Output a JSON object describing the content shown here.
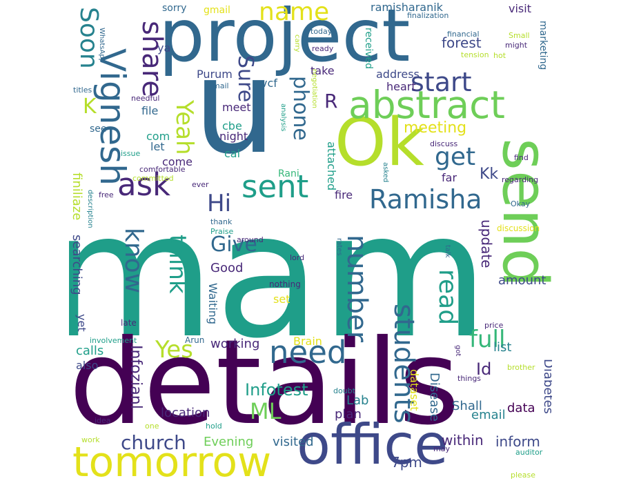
{
  "palette": {
    "dp": "#440154",
    "pu": "#482878",
    "bl": "#3e4989",
    "sb": "#31688e",
    "tl": "#26828e",
    "gt": "#1f9e89",
    "gn": "#35b779",
    "lg": "#6ece58",
    "yg": "#b5de2b",
    "ye": "#e3e11a"
  },
  "words": [
    {
      "text": "mam",
      "size": 250,
      "color": "gt"
    },
    {
      "text": "details",
      "size": 170,
      "color": "dp"
    },
    {
      "text": "u",
      "size": 190,
      "color": "sb"
    },
    {
      "text": "project",
      "size": 105,
      "color": "sb"
    },
    {
      "text": "Ok",
      "size": 95,
      "color": "yg"
    },
    {
      "text": "send",
      "size": 90,
      "color": "lg",
      "vertical": true
    },
    {
      "text": "office",
      "size": 80,
      "color": "bl"
    },
    {
      "text": "tomorrow",
      "size": 60,
      "color": "ye"
    },
    {
      "text": "abstract",
      "size": 55,
      "color": "lg"
    },
    {
      "text": "Vignesh",
      "size": 50,
      "color": "sb",
      "vertical": true
    },
    {
      "text": "ask",
      "size": 45,
      "color": "pu"
    },
    {
      "text": "sent",
      "size": 45,
      "color": "gt"
    },
    {
      "text": "need",
      "size": 45,
      "color": "sb"
    },
    {
      "text": "Ramisha",
      "size": 38,
      "color": "sb"
    },
    {
      "text": "number",
      "size": 40,
      "color": "sb",
      "vertical": true
    },
    {
      "text": "students",
      "size": 40,
      "color": "sb",
      "vertical": true
    },
    {
      "text": "share",
      "size": 40,
      "color": "pu",
      "vertical": true
    },
    {
      "text": "Soon",
      "size": 36,
      "color": "tl",
      "vertical": true
    },
    {
      "text": "name",
      "size": 36,
      "color": "ye"
    },
    {
      "text": "start",
      "size": 38,
      "color": "bl"
    },
    {
      "text": "get",
      "size": 36,
      "color": "sb"
    },
    {
      "text": "phone",
      "size": 30,
      "color": "sb",
      "vertical": true
    },
    {
      "text": "Sure",
      "size": 30,
      "color": "bl",
      "vertical": true
    },
    {
      "text": "Yeah",
      "size": 34,
      "color": "yg",
      "vertical": true
    },
    {
      "text": "think",
      "size": 34,
      "color": "gt",
      "vertical": true
    },
    {
      "text": "know",
      "size": 36,
      "color": "sb",
      "vertical": true
    },
    {
      "text": "read",
      "size": 36,
      "color": "gt",
      "vertical": true
    },
    {
      "text": "full",
      "size": 34,
      "color": "gn"
    },
    {
      "text": "Yes",
      "size": 34,
      "color": "yg"
    },
    {
      "text": "Hi",
      "size": 34,
      "color": "bl"
    },
    {
      "text": "Give",
      "size": 30,
      "color": "sb"
    },
    {
      "text": "ML",
      "size": 32,
      "color": "lg"
    },
    {
      "text": "church",
      "size": 28,
      "color": "bl"
    },
    {
      "text": "K",
      "size": 30,
      "color": "yg"
    },
    {
      "text": "R",
      "size": 28,
      "color": "pu"
    },
    {
      "text": "Kk",
      "size": 22,
      "color": "bl"
    },
    {
      "text": "meeting",
      "size": 22,
      "color": "ye"
    },
    {
      "text": "forest",
      "size": 20,
      "color": "bl"
    },
    {
      "text": "update",
      "size": 20,
      "color": "pu",
      "vertical": true
    },
    {
      "text": "amount",
      "size": 18,
      "color": "bl"
    },
    {
      "text": "Infotest",
      "size": 24,
      "color": "gt"
    },
    {
      "text": "Id",
      "size": 24,
      "color": "pu"
    },
    {
      "text": "Infozianl",
      "size": 22,
      "color": "pu",
      "vertical": true
    },
    {
      "text": "Diabetes",
      "size": 18,
      "color": "bl",
      "vertical": true
    },
    {
      "text": "Disease",
      "size": 18,
      "color": "sb",
      "vertical": true
    },
    {
      "text": "Good",
      "size": 18,
      "color": "pu"
    },
    {
      "text": "Evening",
      "size": 18,
      "color": "lg"
    },
    {
      "text": "within",
      "size": 20,
      "color": "pu"
    },
    {
      "text": "inform",
      "size": 20,
      "color": "bl"
    },
    {
      "text": "7pm",
      "size": 20,
      "color": "bl"
    },
    {
      "text": "data",
      "size": 18,
      "color": "dp"
    },
    {
      "text": "visited",
      "size": 18,
      "color": "sb"
    },
    {
      "text": "location",
      "size": 18,
      "color": "pu"
    },
    {
      "text": "working",
      "size": 18,
      "color": "pu"
    },
    {
      "text": "Brain",
      "size": 16,
      "color": "ye"
    },
    {
      "text": "list",
      "size": 18,
      "color": "tl"
    },
    {
      "text": "Lab",
      "size": 18,
      "color": "tl"
    },
    {
      "text": "plan",
      "size": 18,
      "color": "pu"
    },
    {
      "text": "dataset",
      "size": 16,
      "color": "ye",
      "vertical": true
    },
    {
      "text": "Shall",
      "size": 18,
      "color": "sb"
    },
    {
      "text": "email",
      "size": 18,
      "color": "tl"
    },
    {
      "text": "calls",
      "size": 18,
      "color": "gt"
    },
    {
      "text": "also",
      "size": 16,
      "color": "bl"
    },
    {
      "text": "searching",
      "size": 18,
      "color": "bl",
      "vertical": true
    },
    {
      "text": "finiliaze",
      "size": 18,
      "color": "yg",
      "vertical": true
    },
    {
      "text": "Waiting",
      "size": 16,
      "color": "sb",
      "vertical": true
    },
    {
      "text": "set",
      "size": 16,
      "color": "ye"
    },
    {
      "text": "yet",
      "size": 16,
      "color": "bl",
      "vertical": true
    },
    {
      "text": "Purum",
      "size": 16,
      "color": "bl"
    },
    {
      "text": "vcf",
      "size": 16,
      "color": "sb"
    },
    {
      "text": "meet",
      "size": 16,
      "color": "pu"
    },
    {
      "text": "cbe",
      "size": 16,
      "color": "gt"
    },
    {
      "text": "night",
      "size": 16,
      "color": "pu"
    },
    {
      "text": "cal",
      "size": 16,
      "color": "gt"
    },
    {
      "text": "come",
      "size": 16,
      "color": "pu"
    },
    {
      "text": "let",
      "size": 16,
      "color": "sb"
    },
    {
      "text": "com",
      "size": 16,
      "color": "gt"
    },
    {
      "text": "see",
      "size": 14,
      "color": "sb"
    },
    {
      "text": "file",
      "size": 16,
      "color": "sb"
    },
    {
      "text": "ya",
      "size": 16,
      "color": "bl"
    },
    {
      "text": "sorry",
      "size": 14,
      "color": "sb"
    },
    {
      "text": "gmail",
      "size": 14,
      "color": "ye"
    },
    {
      "text": "ramisharanik",
      "size": 16,
      "color": "sb"
    },
    {
      "text": "visit",
      "size": 16,
      "color": "pu"
    },
    {
      "text": "received",
      "size": 14,
      "color": "gt",
      "vertical": true
    },
    {
      "text": "address",
      "size": 16,
      "color": "bl"
    },
    {
      "text": "take",
      "size": 16,
      "color": "pu"
    },
    {
      "text": "heart",
      "size": 16,
      "color": "pu"
    },
    {
      "text": "marketing",
      "size": 14,
      "color": "sb",
      "vertical": true
    },
    {
      "text": "attached",
      "size": 16,
      "color": "gt",
      "vertical": true
    },
    {
      "text": "Rani",
      "size": 14,
      "color": "gn"
    },
    {
      "text": "fire",
      "size": 16,
      "color": "pu"
    },
    {
      "text": "far",
      "size": 16,
      "color": "pu"
    },
    {
      "text": "Arun",
      "size": 12,
      "color": "sb"
    },
    {
      "text": "late",
      "size": 12,
      "color": "pu"
    },
    {
      "text": "around",
      "size": 11,
      "color": "pu"
    },
    {
      "text": "lord",
      "size": 11,
      "color": "pu"
    },
    {
      "text": "nothing",
      "size": 12,
      "color": "pu"
    },
    {
      "text": "rates",
      "size": 10,
      "color": "sb",
      "vertical": true
    },
    {
      "text": "talk",
      "size": 10,
      "color": "sb",
      "vertical": true
    },
    {
      "text": "discussion",
      "size": 12,
      "color": "ye"
    },
    {
      "text": "Okay",
      "size": 11,
      "color": "sb"
    },
    {
      "text": "regarding",
      "size": 11,
      "color": "pu"
    },
    {
      "text": "find",
      "size": 11,
      "color": "pu"
    },
    {
      "text": "discuss",
      "size": 11,
      "color": "pu"
    },
    {
      "text": "asked",
      "size": 10,
      "color": "tl",
      "vertical": true
    },
    {
      "text": "negotiation",
      "size": 10,
      "color": "yg",
      "vertical": true
    },
    {
      "text": "analysis",
      "size": 10,
      "color": "gt",
      "vertical": true
    },
    {
      "text": "ever",
      "size": 11,
      "color": "pu"
    },
    {
      "text": "comfortable",
      "size": 11,
      "color": "pu"
    },
    {
      "text": "committed",
      "size": 11,
      "color": "yg"
    },
    {
      "text": "issue",
      "size": 11,
      "color": "gt"
    },
    {
      "text": "needful",
      "size": 11,
      "color": "pu"
    },
    {
      "text": "mail",
      "size": 11,
      "color": "sb"
    },
    {
      "text": "titles",
      "size": 11,
      "color": "sb"
    },
    {
      "text": "free",
      "size": 11,
      "color": "pu"
    },
    {
      "text": "description",
      "size": 10,
      "color": "tl",
      "vertical": true
    },
    {
      "text": "thank",
      "size": 11,
      "color": "sb"
    },
    {
      "text": "Praise",
      "size": 11,
      "color": "gt"
    },
    {
      "text": "today",
      "size": 11,
      "color": "sb"
    },
    {
      "text": "ready",
      "size": 11,
      "color": "pu"
    },
    {
      "text": "carry",
      "size": 10,
      "color": "yg",
      "vertical": true
    },
    {
      "text": "WhatsApp",
      "size": 10,
      "color": "sb",
      "vertical": true
    },
    {
      "text": "finalization",
      "size": 11,
      "color": "sb"
    },
    {
      "text": "financial",
      "size": 11,
      "color": "sb"
    },
    {
      "text": "Small",
      "size": 11,
      "color": "yg"
    },
    {
      "text": "might",
      "size": 11,
      "color": "pu"
    },
    {
      "text": "tension",
      "size": 11,
      "color": "yg"
    },
    {
      "text": "hot",
      "size": 11,
      "color": "yg"
    },
    {
      "text": "price",
      "size": 11,
      "color": "pu"
    },
    {
      "text": "got",
      "size": 10,
      "color": "pu",
      "vertical": true
    },
    {
      "text": "brother",
      "size": 11,
      "color": "yg"
    },
    {
      "text": "things",
      "size": 11,
      "color": "pu"
    },
    {
      "text": "involvement",
      "size": 11,
      "color": "gt"
    },
    {
      "text": "doubt",
      "size": 11,
      "color": "tl"
    },
    {
      "text": "idea",
      "size": 11,
      "color": "pu"
    },
    {
      "text": "hold",
      "size": 11,
      "color": "gt"
    },
    {
      "text": "one",
      "size": 11,
      "color": "yg"
    },
    {
      "text": "work",
      "size": 11,
      "color": "yg"
    },
    {
      "text": "may",
      "size": 11,
      "color": "pu"
    },
    {
      "text": "auditor",
      "size": 11,
      "color": "gt"
    },
    {
      "text": "please",
      "size": 11,
      "color": "yg"
    }
  ]
}
